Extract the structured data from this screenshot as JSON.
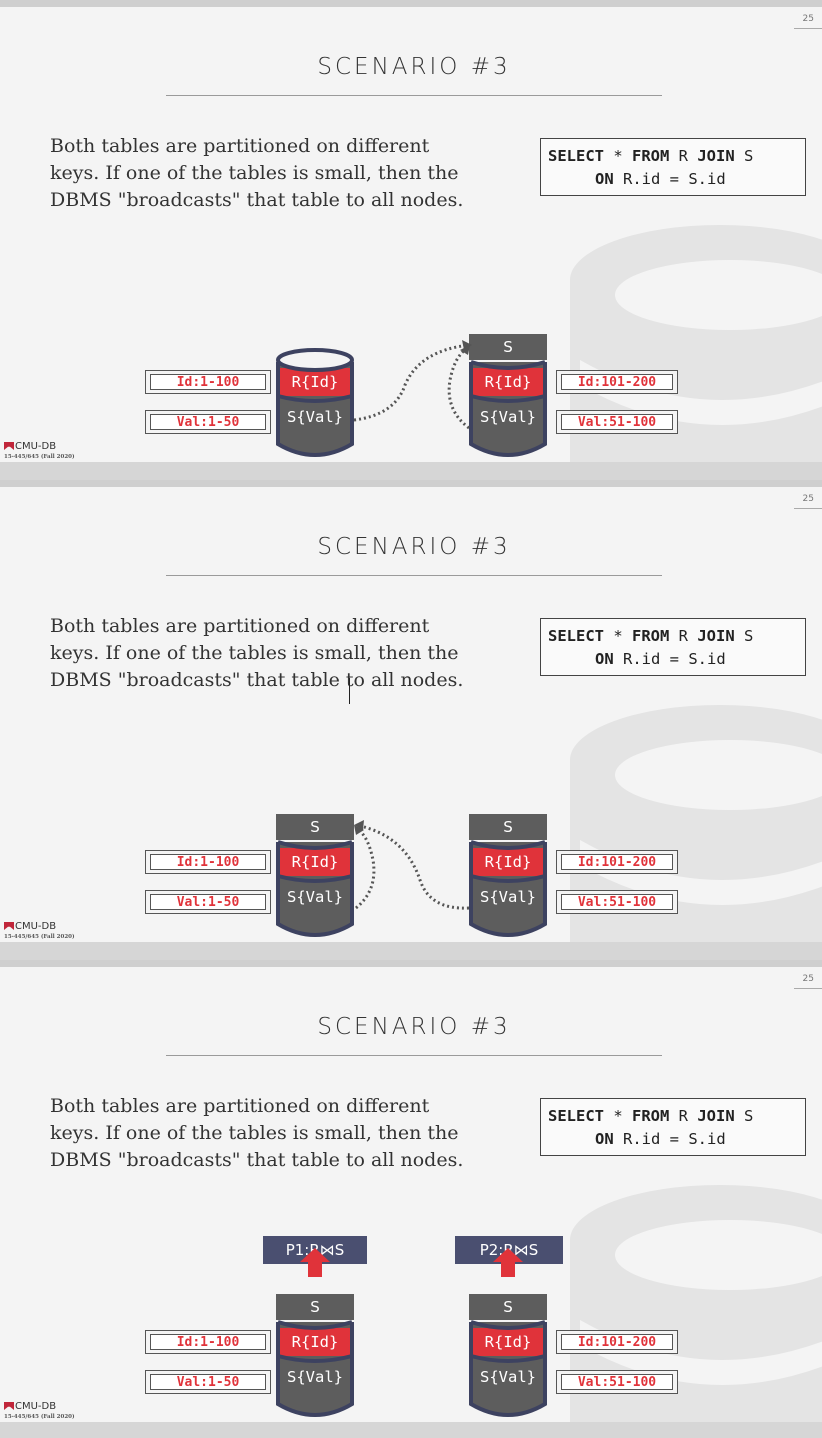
{
  "slides": [
    {
      "slide_number": "25",
      "title": "SCENARIO #3",
      "body": "Both tables are partitioned on different keys. If one of the tables is small, then the DBMS \"broadcasts\" that table to all nodes.",
      "sql": {
        "kw1": "SELECT",
        "star": " * ",
        "kw2": "FROM",
        "r": " R ",
        "kw3": "JOIN",
        "s": " S",
        "kw4": "ON",
        "cond": " R.id = S.id"
      },
      "left_labels": [
        "Id:1-100",
        "Val:1-50"
      ],
      "right_labels": [
        "Id:101-200",
        "Val:51-100"
      ],
      "db_rows": [
        "R{Id}",
        "S{Val}"
      ],
      "s_block": "S",
      "logo": "CMU-DB",
      "course": "15-445/645 (Fall 2020)"
    },
    {
      "slide_number": "25",
      "title": "SCENARIO #3",
      "body": "Both tables are partitioned on different keys. If one of the tables is small, then the DBMS \"broadcasts\" that table to all nodes.",
      "sql": {
        "kw1": "SELECT",
        "star": " * ",
        "kw2": "FROM",
        "r": " R ",
        "kw3": "JOIN",
        "s": " S",
        "kw4": "ON",
        "cond": " R.id = S.id"
      },
      "left_labels": [
        "Id:1-100",
        "Val:1-50"
      ],
      "right_labels": [
        "Id:101-200",
        "Val:51-100"
      ],
      "db_rows": [
        "R{Id}",
        "S{Val}"
      ],
      "s_block": "S",
      "logo": "CMU-DB",
      "course": "15-445/645 (Fall 2020)"
    },
    {
      "slide_number": "25",
      "title": "SCENARIO #3",
      "body": "Both tables are partitioned on different keys. If one of the tables is small, then the DBMS \"broadcasts\" that table to all nodes.",
      "sql": {
        "kw1": "SELECT",
        "star": " * ",
        "kw2": "FROM",
        "r": " R ",
        "kw3": "JOIN",
        "s": " S",
        "kw4": "ON",
        "cond": " R.id = S.id"
      },
      "left_labels": [
        "Id:1-100",
        "Val:1-50"
      ],
      "right_labels": [
        "Id:101-200",
        "Val:51-100"
      ],
      "db_rows": [
        "R{Id}",
        "S{Val}"
      ],
      "s_block": "S",
      "p_labels": [
        "P1:R⋈S",
        "P2:R⋈S"
      ],
      "logo": "CMU-DB",
      "course": "15-445/645 (Fall 2020)"
    }
  ],
  "colors": {
    "red": "#e0333a",
    "dark_gray": "#5d5d5d",
    "navy": "#4a4f70"
  }
}
